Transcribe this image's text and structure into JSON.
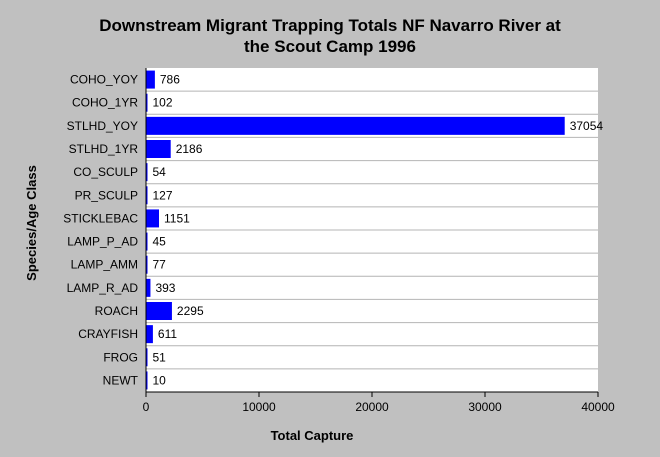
{
  "chart_data": {
    "type": "bar",
    "orientation": "horizontal",
    "title_line1": "Downstream Migrant Trapping Totals NF Navarro River at",
    "title_line2": "the Scout Camp 1996",
    "xlabel": "Total Capture",
    "ylabel": "Species/Age Class",
    "xlim": [
      0,
      40000
    ],
    "xticks": [
      0,
      10000,
      20000,
      30000,
      40000
    ],
    "grid": "horizontal",
    "bar_color": "#0000ff",
    "categories": [
      "COHO_YOY",
      "COHO_1YR",
      "STLHD_YOY",
      "STLHD_1YR",
      "CO_SCULP",
      "PR_SCULP",
      "STICKLEBAC",
      "LAMP_P_AD",
      "LAMP_AMM",
      "LAMP_R_AD",
      "ROACH",
      "CRAYFISH",
      "FROG",
      "NEWT"
    ],
    "values": [
      786,
      102,
      37054,
      2186,
      54,
      127,
      1151,
      45,
      77,
      393,
      2295,
      611,
      51,
      10
    ]
  }
}
